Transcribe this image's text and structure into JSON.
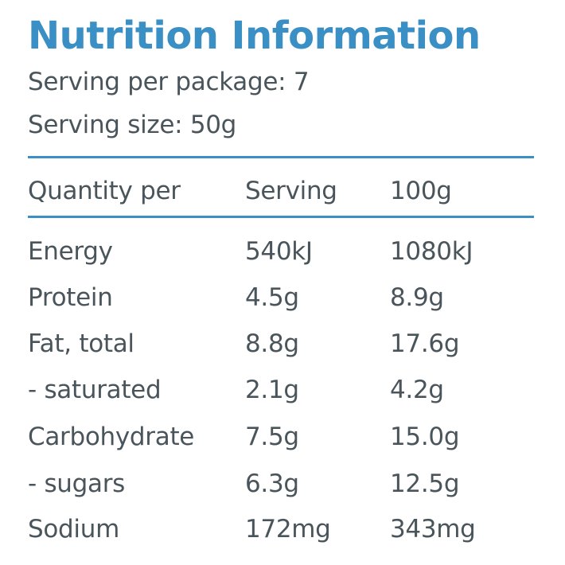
{
  "panel": {
    "title": "Nutrition Information",
    "servings_per_package": "Serving per package: 7",
    "serving_size": "Serving size: 50g"
  },
  "table": {
    "headers": [
      "Quantity per",
      "Serving",
      "100g"
    ],
    "rows": [
      {
        "label": "Energy",
        "per_serving": "540kJ",
        "per_100g": "1080kJ"
      },
      {
        "label": "Protein",
        "per_serving": "4.5g",
        "per_100g": "8.9g"
      },
      {
        "label": "Fat, total",
        "per_serving": "8.8g",
        "per_100g": "17.6g"
      },
      {
        "label": "- saturated",
        "per_serving": "2.1g",
        "per_100g": "4.2g"
      },
      {
        "label": "Carbohydrate",
        "per_serving": "7.5g",
        "per_100g": "15.0g"
      },
      {
        "label": "- sugars",
        "per_serving": "6.3g",
        "per_100g": "12.5g"
      },
      {
        "label": "Sodium",
        "per_serving": "172mg",
        "per_100g": "343mg"
      }
    ]
  },
  "colors": {
    "accent": "#3a8fc4",
    "text": "#4a555b",
    "background": "#ffffff"
  }
}
